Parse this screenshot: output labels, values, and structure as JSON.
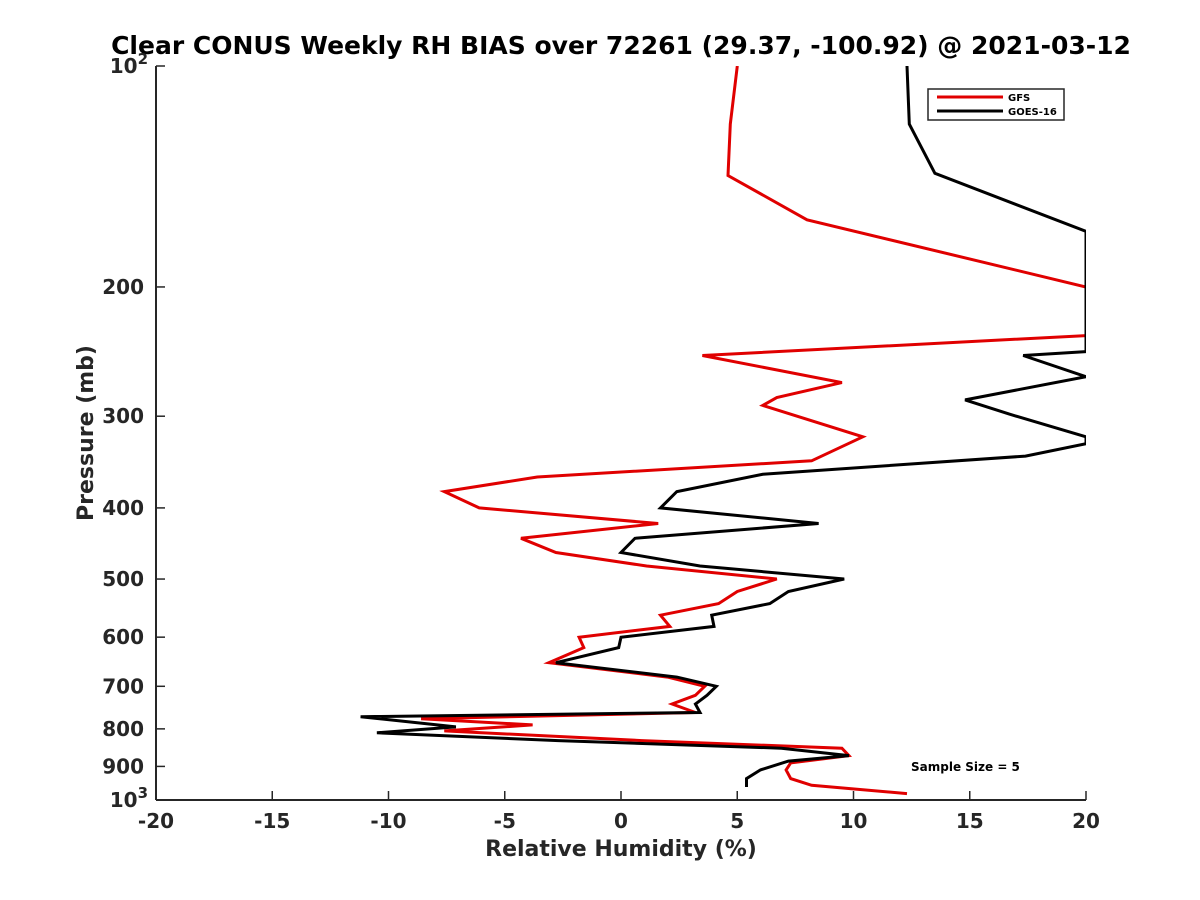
{
  "chart_data": {
    "type": "line",
    "title": "Clear CONUS Weekly RH BIAS over 72261 (29.37, -100.92) @ 2021-03-12",
    "xlabel": "Relative Humidity (%)",
    "ylabel": "Pressure (mb)",
    "xlim": [
      -20,
      20
    ],
    "ylim": [
      100,
      1000
    ],
    "y_scale": "log",
    "y_reversed": true,
    "grid": false,
    "legend_position": "top-right",
    "x_ticks": [
      "-20",
      "-15",
      "-10",
      "-5",
      "0",
      "5",
      "10",
      "15",
      "20"
    ],
    "y_ticks": [
      {
        "value": 100,
        "base": "10",
        "exp": "2"
      },
      {
        "value": 200,
        "label": "200"
      },
      {
        "value": 300,
        "label": "300"
      },
      {
        "value": 400,
        "label": "400"
      },
      {
        "value": 500,
        "label": "500"
      },
      {
        "value": 600,
        "label": "600"
      },
      {
        "value": 700,
        "label": "700"
      },
      {
        "value": 800,
        "label": "800"
      },
      {
        "value": 900,
        "label": "900"
      },
      {
        "value": 1000,
        "base": "10",
        "exp": "3"
      }
    ],
    "annotation": "Sample Size = 5",
    "series": [
      {
        "name": "GFS",
        "color": "#e00000",
        "points": [
          [
            5.0,
            100
          ],
          [
            4.7,
            120
          ],
          [
            4.6,
            141
          ],
          [
            8.0,
            162
          ],
          [
            20.0,
            200
          ],
          [
            20.0,
            233
          ],
          [
            3.5,
            248
          ],
          [
            9.5,
            270
          ],
          [
            6.7,
            283
          ],
          [
            6.1,
            290
          ],
          [
            10.4,
            320
          ],
          [
            8.2,
            345
          ],
          [
            -3.6,
            363
          ],
          [
            -7.6,
            380
          ],
          [
            -6.1,
            400
          ],
          [
            1.6,
            420
          ],
          [
            -4.3,
            440
          ],
          [
            -2.8,
            460
          ],
          [
            1.1,
            480
          ],
          [
            6.7,
            500
          ],
          [
            5.0,
            520
          ],
          [
            4.2,
            540
          ],
          [
            1.7,
            560
          ],
          [
            2.1,
            580
          ],
          [
            -1.8,
            600
          ],
          [
            -1.6,
            620
          ],
          [
            -3.1,
            650
          ],
          [
            2.0,
            680
          ],
          [
            3.6,
            700
          ],
          [
            3.2,
            720
          ],
          [
            2.2,
            740
          ],
          [
            3.2,
            760
          ],
          [
            -8.6,
            775
          ],
          [
            -3.8,
            790
          ],
          [
            -7.6,
            805
          ],
          [
            0.9,
            830
          ],
          [
            9.5,
            850
          ],
          [
            9.8,
            870
          ],
          [
            7.3,
            890
          ],
          [
            7.1,
            910
          ],
          [
            7.3,
            935
          ],
          [
            8.2,
            955
          ],
          [
            12.3,
            980
          ]
        ]
      },
      {
        "name": "GOES-16",
        "color": "#000000",
        "points": [
          [
            12.3,
            100
          ],
          [
            12.4,
            120
          ],
          [
            13.5,
            140
          ],
          [
            20.0,
            168
          ],
          [
            20.0,
            245
          ],
          [
            17.3,
            248
          ],
          [
            20.0,
            265
          ],
          [
            14.8,
            285
          ],
          [
            16.7,
            298
          ],
          [
            20.0,
            320
          ],
          [
            20.0,
            327
          ],
          [
            17.4,
            340
          ],
          [
            6.1,
            360
          ],
          [
            2.4,
            380
          ],
          [
            1.7,
            400
          ],
          [
            8.5,
            420
          ],
          [
            0.6,
            440
          ],
          [
            0.0,
            460
          ],
          [
            3.4,
            480
          ],
          [
            9.6,
            500
          ],
          [
            7.2,
            520
          ],
          [
            6.4,
            540
          ],
          [
            3.9,
            560
          ],
          [
            4.0,
            580
          ],
          [
            0.0,
            600
          ],
          [
            -0.1,
            620
          ],
          [
            -2.8,
            650
          ],
          [
            2.4,
            680
          ],
          [
            4.1,
            700
          ],
          [
            3.7,
            720
          ],
          [
            3.2,
            740
          ],
          [
            3.4,
            760
          ],
          [
            -11.2,
            770
          ],
          [
            -7.1,
            795
          ],
          [
            -10.5,
            810
          ],
          [
            -2.7,
            830
          ],
          [
            6.9,
            850
          ],
          [
            9.8,
            870
          ],
          [
            7.2,
            885
          ],
          [
            6.0,
            910
          ],
          [
            5.4,
            935
          ],
          [
            5.4,
            960
          ]
        ]
      }
    ]
  }
}
